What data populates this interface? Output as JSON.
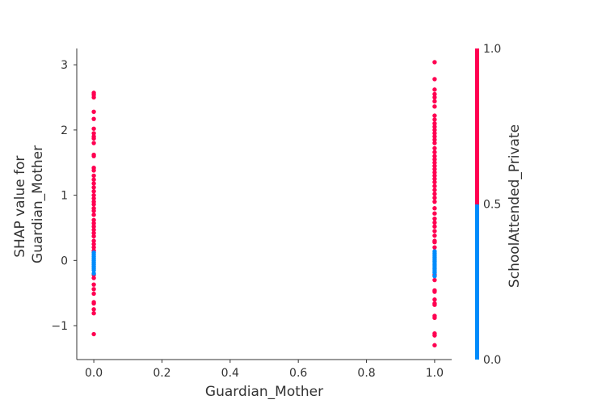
{
  "chart_data": {
    "type": "scatter",
    "title": "",
    "xlabel": "Guardian_Mother",
    "ylabel_lines": [
      "SHAP value for",
      "Guardian_Mother"
    ],
    "xlim": [
      -0.05,
      1.05
    ],
    "ylim": [
      -1.52,
      3.25
    ],
    "x_ticks": [
      {
        "value": 0.0,
        "label": "0.0"
      },
      {
        "value": 0.2,
        "label": "0.2"
      },
      {
        "value": 0.4,
        "label": "0.4"
      },
      {
        "value": 0.6,
        "label": "0.6"
      },
      {
        "value": 0.8,
        "label": "0.8"
      },
      {
        "value": 1.0,
        "label": "1.0"
      }
    ],
    "y_ticks": [
      {
        "value": -1,
        "label": "−1"
      },
      {
        "value": 0,
        "label": "0"
      },
      {
        "value": 1,
        "label": "1"
      },
      {
        "value": 2,
        "label": "2"
      },
      {
        "value": 3,
        "label": "3"
      }
    ],
    "grid": false,
    "colorbar": {
      "label": "SchoolAttended_Private",
      "ticks": [
        {
          "value": 0.0,
          "label": "0.0"
        },
        {
          "value": 0.5,
          "label": "0.5"
        },
        {
          "value": 1.0,
          "label": "1.0"
        }
      ],
      "low_color": "#008BFB",
      "high_color": "#FF0051"
    },
    "series": [
      {
        "color_value": 1.0,
        "color": "#FF0051",
        "points": [
          {
            "x": 0,
            "y": 2.57
          },
          {
            "x": 0,
            "y": 2.54
          },
          {
            "x": 0,
            "y": 2.5
          },
          {
            "x": 0,
            "y": 2.28
          },
          {
            "x": 0,
            "y": 2.17
          },
          {
            "x": 0,
            "y": 2.02
          },
          {
            "x": 0,
            "y": 1.95
          },
          {
            "x": 0,
            "y": 1.9
          },
          {
            "x": 0,
            "y": 1.87
          },
          {
            "x": 0,
            "y": 1.8
          },
          {
            "x": 0,
            "y": 1.62
          },
          {
            "x": 0,
            "y": 1.6
          },
          {
            "x": 0,
            "y": 1.42
          },
          {
            "x": 0,
            "y": 1.38
          },
          {
            "x": 0,
            "y": 1.3
          },
          {
            "x": 0,
            "y": 1.24
          },
          {
            "x": 0,
            "y": 1.18
          },
          {
            "x": 0,
            "y": 1.12
          },
          {
            "x": 0,
            "y": 1.06
          },
          {
            "x": 0,
            "y": 1.0
          },
          {
            "x": 0,
            "y": 0.95
          },
          {
            "x": 0,
            "y": 0.9
          },
          {
            "x": 0,
            "y": 0.86
          },
          {
            "x": 0,
            "y": 0.8
          },
          {
            "x": 0,
            "y": 0.76
          },
          {
            "x": 0,
            "y": 0.7
          },
          {
            "x": 0,
            "y": 0.62
          },
          {
            "x": 0,
            "y": 0.57
          },
          {
            "x": 0,
            "y": 0.52
          },
          {
            "x": 0,
            "y": 0.47
          },
          {
            "x": 0,
            "y": 0.42
          },
          {
            "x": 0,
            "y": 0.37
          },
          {
            "x": 0,
            "y": 0.3
          },
          {
            "x": 0,
            "y": 0.25
          },
          {
            "x": 0,
            "y": 0.2
          },
          {
            "x": 0,
            "y": 0.15
          },
          {
            "x": 0,
            "y": -0.22
          },
          {
            "x": 0,
            "y": -0.27
          },
          {
            "x": 0,
            "y": -0.37
          },
          {
            "x": 0,
            "y": -0.44
          },
          {
            "x": 0,
            "y": -0.51
          },
          {
            "x": 0,
            "y": -0.64
          },
          {
            "x": 0,
            "y": -0.66
          },
          {
            "x": 0,
            "y": -0.75
          },
          {
            "x": 0,
            "y": -0.81
          },
          {
            "x": 0,
            "y": -1.13
          },
          {
            "x": 1,
            "y": 3.04
          },
          {
            "x": 1,
            "y": 2.78
          },
          {
            "x": 1,
            "y": 2.62
          },
          {
            "x": 1,
            "y": 2.55
          },
          {
            "x": 1,
            "y": 2.5
          },
          {
            "x": 1,
            "y": 2.44
          },
          {
            "x": 1,
            "y": 2.36
          },
          {
            "x": 1,
            "y": 2.22
          },
          {
            "x": 1,
            "y": 2.16
          },
          {
            "x": 1,
            "y": 2.1
          },
          {
            "x": 1,
            "y": 2.05
          },
          {
            "x": 1,
            "y": 2.0
          },
          {
            "x": 1,
            "y": 1.95
          },
          {
            "x": 1,
            "y": 1.9
          },
          {
            "x": 1,
            "y": 1.85
          },
          {
            "x": 1,
            "y": 1.8
          },
          {
            "x": 1,
            "y": 1.72
          },
          {
            "x": 1,
            "y": 1.66
          },
          {
            "x": 1,
            "y": 1.6
          },
          {
            "x": 1,
            "y": 1.55
          },
          {
            "x": 1,
            "y": 1.5
          },
          {
            "x": 1,
            "y": 1.45
          },
          {
            "x": 1,
            "y": 1.4
          },
          {
            "x": 1,
            "y": 1.35
          },
          {
            "x": 1,
            "y": 1.3
          },
          {
            "x": 1,
            "y": 1.25
          },
          {
            "x": 1,
            "y": 1.2
          },
          {
            "x": 1,
            "y": 1.14
          },
          {
            "x": 1,
            "y": 1.08
          },
          {
            "x": 1,
            "y": 1.02
          },
          {
            "x": 1,
            "y": 0.96
          },
          {
            "x": 1,
            "y": 0.9
          },
          {
            "x": 1,
            "y": 0.8
          },
          {
            "x": 1,
            "y": 0.72
          },
          {
            "x": 1,
            "y": 0.64
          },
          {
            "x": 1,
            "y": 0.58
          },
          {
            "x": 1,
            "y": 0.52
          },
          {
            "x": 1,
            "y": 0.45
          },
          {
            "x": 1,
            "y": 0.38
          },
          {
            "x": 1,
            "y": 0.3
          },
          {
            "x": 1,
            "y": 0.28
          },
          {
            "x": 1,
            "y": 0.2
          },
          {
            "x": 1,
            "y": -0.22
          },
          {
            "x": 1,
            "y": -0.3
          },
          {
            "x": 1,
            "y": -0.46
          },
          {
            "x": 1,
            "y": -0.48
          },
          {
            "x": 1,
            "y": -0.6
          },
          {
            "x": 1,
            "y": -0.66
          },
          {
            "x": 1,
            "y": -0.68
          },
          {
            "x": 1,
            "y": -0.85
          },
          {
            "x": 1,
            "y": -0.88
          },
          {
            "x": 1,
            "y": -1.12
          },
          {
            "x": 1,
            "y": -1.15
          },
          {
            "x": 1,
            "y": -1.3
          }
        ]
      },
      {
        "color_value": 0.0,
        "color": "#008BFB",
        "points": [
          {
            "x": 0,
            "y": 0.12
          },
          {
            "x": 0,
            "y": 0.09
          },
          {
            "x": 0,
            "y": 0.06
          },
          {
            "x": 0,
            "y": 0.03
          },
          {
            "x": 0,
            "y": 0.0
          },
          {
            "x": 0,
            "y": -0.03
          },
          {
            "x": 0,
            "y": -0.06
          },
          {
            "x": 0,
            "y": -0.09
          },
          {
            "x": 0,
            "y": -0.12
          },
          {
            "x": 0,
            "y": -0.15
          },
          {
            "x": 0,
            "y": -0.2
          },
          {
            "x": 1,
            "y": 0.14
          },
          {
            "x": 1,
            "y": 0.11
          },
          {
            "x": 1,
            "y": 0.08
          },
          {
            "x": 1,
            "y": 0.05
          },
          {
            "x": 1,
            "y": 0.02
          },
          {
            "x": 1,
            "y": -0.01
          },
          {
            "x": 1,
            "y": -0.04
          },
          {
            "x": 1,
            "y": -0.07
          },
          {
            "x": 1,
            "y": -0.1
          },
          {
            "x": 1,
            "y": -0.13
          },
          {
            "x": 1,
            "y": -0.16
          },
          {
            "x": 1,
            "y": -0.19
          },
          {
            "x": 1,
            "y": -0.24
          }
        ]
      }
    ]
  }
}
